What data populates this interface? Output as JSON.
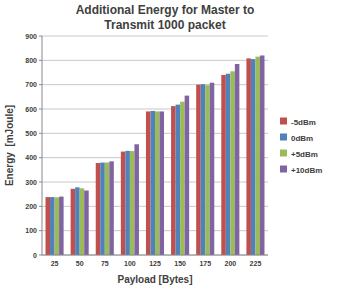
{
  "chart_data": {
    "type": "bar",
    "title": "Additional Energy for Master to Transmit 1000 packet",
    "x_label": "Payload [Bytes]",
    "y_label": "Energy  [mJoule]",
    "categories": [
      "25",
      "50",
      "75",
      "100",
      "125",
      "150",
      "175",
      "200",
      "225"
    ],
    "series": [
      {
        "name": "-5dBm",
        "color": "#c0504d",
        "values": [
          238,
          272,
          378,
          425,
          590,
          612,
          700,
          740,
          808
        ]
      },
      {
        "name": "0dBm",
        "color": "#4f81bd",
        "values": [
          238,
          278,
          380,
          428,
          592,
          618,
          702,
          745,
          805
        ]
      },
      {
        "name": "+5dBm",
        "color": "#9bbb59",
        "values": [
          237,
          274,
          380,
          427,
          590,
          630,
          698,
          755,
          815
        ]
      },
      {
        "name": "+10dBm",
        "color": "#8064a2",
        "values": [
          240,
          265,
          385,
          455,
          590,
          655,
          708,
          785,
          820
        ]
      }
    ],
    "ylim": [
      0,
      900
    ],
    "yticks": [
      0,
      100,
      200,
      300,
      400,
      500,
      600,
      700,
      800,
      900
    ],
    "grid": true,
    "legend": "right"
  }
}
